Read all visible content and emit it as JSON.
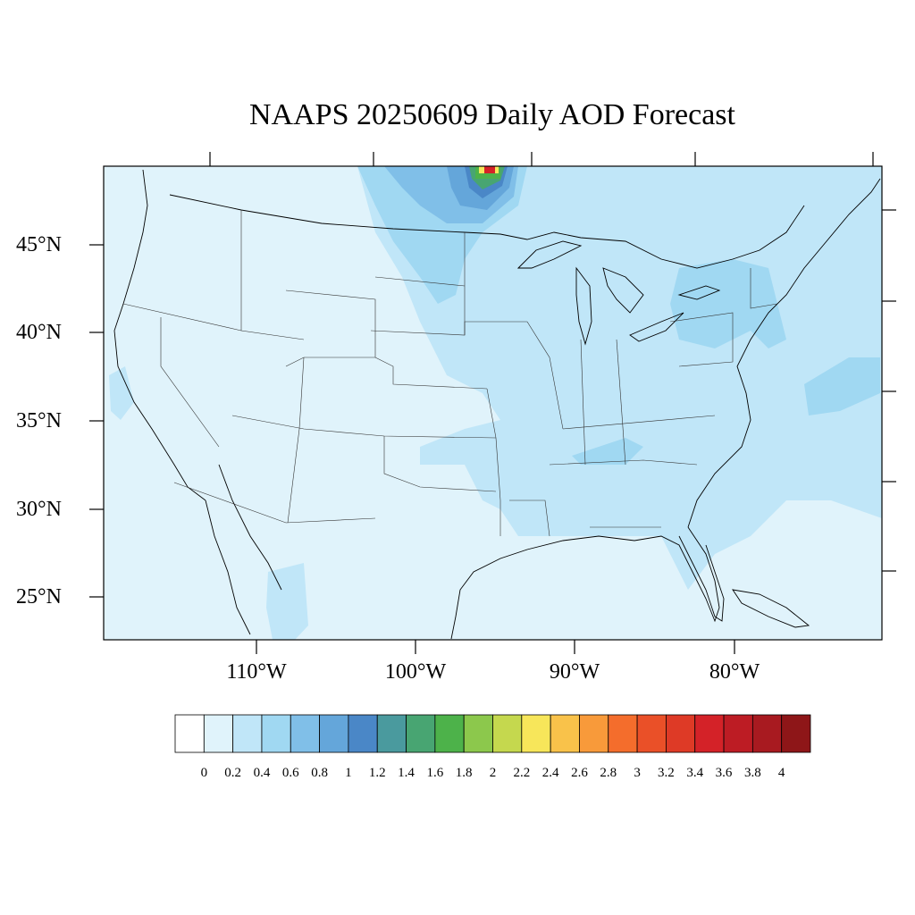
{
  "title": "NAAPS 20250609 Daily AOD Forecast",
  "lat_axis": {
    "labels": [
      "45°N",
      "40°N",
      "35°N",
      "30°N",
      "25°N"
    ],
    "values": [
      45,
      40,
      35,
      30,
      25
    ]
  },
  "lon_axis": {
    "labels": [
      "110°W",
      "100°W",
      "90°W",
      "80°W"
    ],
    "values": [
      -110,
      -100,
      -90,
      -80
    ]
  },
  "colorbar": {
    "levels": [
      "0",
      "0.2",
      "0.4",
      "0.6",
      "0.8",
      "1",
      "1.2",
      "1.4",
      "1.6",
      "1.8",
      "2",
      "2.2",
      "2.4",
      "2.6",
      "2.8",
      "3",
      "3.2",
      "3.4",
      "3.6",
      "3.8",
      "4"
    ],
    "colors": [
      "#ffffff",
      "#e0f3fb",
      "#c0e6f8",
      "#a0d8f2",
      "#80bfe8",
      "#64a6da",
      "#4a87c7",
      "#4a9a9e",
      "#48a572",
      "#4db24a",
      "#8cc84c",
      "#c5d84e",
      "#f7e65a",
      "#f9c24a",
      "#f89a3a",
      "#f46d2c",
      "#ea5028",
      "#de3a26",
      "#d42228",
      "#bd1c24",
      "#a81a20",
      "#8e1618"
    ]
  },
  "legend": [
    {
      "color": "#e0f3fb",
      "label": "0.2"
    },
    {
      "color": "#c0e6f8",
      "label": "0.4"
    },
    {
      "color": "#a0d8f2",
      "label": "0.6"
    }
  ]
}
